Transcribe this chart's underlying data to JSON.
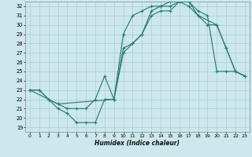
{
  "title": "",
  "xlabel": "Humidex (Indice chaleur)",
  "bg_color": "#cce8ed",
  "grid_color": "#b0d0d8",
  "line_color": "#2e7d72",
  "xlim": [
    -0.5,
    23.5
  ],
  "ylim": [
    18.5,
    32.5
  ],
  "xticks": [
    0,
    1,
    2,
    3,
    4,
    5,
    6,
    7,
    8,
    9,
    10,
    11,
    12,
    13,
    14,
    15,
    16,
    17,
    18,
    19,
    20,
    21,
    22,
    23
  ],
  "yticks": [
    19,
    20,
    21,
    22,
    23,
    24,
    25,
    26,
    27,
    28,
    29,
    30,
    31,
    32
  ],
  "line1_x": [
    0,
    1,
    2,
    3,
    4,
    5,
    6,
    7,
    8,
    9,
    10,
    11,
    12,
    13,
    14,
    15,
    16,
    17,
    18,
    19,
    20,
    21,
    22,
    23
  ],
  "line1_y": [
    23,
    23,
    22,
    21,
    20.5,
    19.5,
    19.5,
    19.5,
    22,
    22,
    29,
    31,
    31.5,
    32,
    32,
    32.5,
    32.5,
    32.5,
    31.5,
    31,
    25,
    25,
    25,
    24.5
  ],
  "line2_x": [
    0,
    1,
    2,
    3,
    4,
    5,
    6,
    7,
    8,
    9,
    10,
    11,
    12,
    13,
    14,
    15,
    16,
    17,
    18,
    19,
    20,
    21,
    22,
    23
  ],
  "line2_y": [
    23,
    23,
    22,
    21.5,
    21,
    21,
    21,
    22,
    24.5,
    22,
    27,
    28,
    29,
    31,
    31.5,
    31.5,
    32.5,
    32.5,
    31,
    30,
    30,
    27.5,
    25,
    24.5
  ],
  "line3_x": [
    0,
    2,
    3,
    9,
    10,
    11,
    12,
    13,
    14,
    15,
    16,
    17,
    18,
    20,
    21,
    22,
    23
  ],
  "line3_y": [
    23,
    22,
    21.5,
    22,
    27.5,
    28,
    29,
    31.5,
    32,
    32,
    32.5,
    32,
    31,
    30,
    27.5,
    25,
    24.5
  ]
}
